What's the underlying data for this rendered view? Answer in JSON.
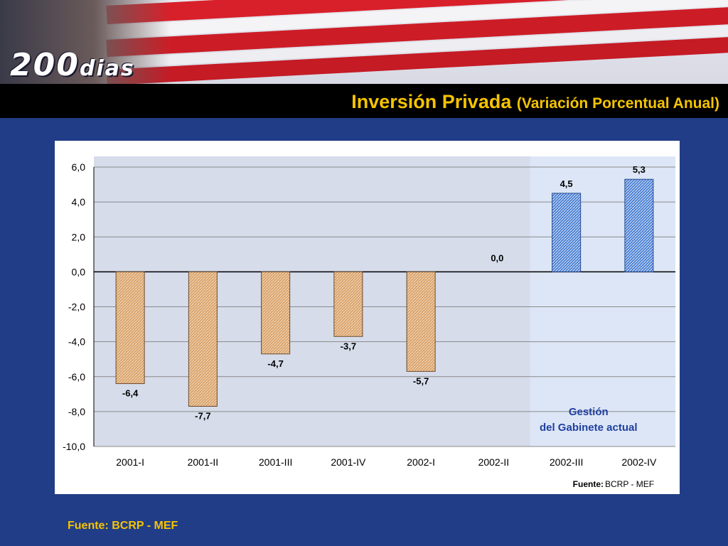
{
  "banner": {
    "logo_number": "200",
    "logo_word": "dias"
  },
  "header": {
    "title_main": "Inversión Privada",
    "title_sub": "(Variación Porcentual Anual)"
  },
  "chart_data": {
    "type": "bar",
    "categories": [
      "2001-I",
      "2001-II",
      "2001-III",
      "2001-IV",
      "2002-I",
      "2002-II",
      "2002-III",
      "2002-IV"
    ],
    "values": [
      -6.4,
      -7.7,
      -4.7,
      -3.7,
      -5.7,
      0.0,
      4.5,
      5.3
    ],
    "value_labels": [
      "-6,4",
      "-7,7",
      "-4,7",
      "-3,7",
      "-5,7",
      "0,0",
      "4,5",
      "5,3"
    ],
    "ylim": [
      -10,
      6
    ],
    "yticks": [
      6,
      4,
      2,
      0,
      -2,
      -4,
      -6,
      -8,
      -10
    ],
    "ytick_labels": [
      "6,0",
      "4,0",
      "2,0",
      "0,0",
      "-2,0",
      "-4,0",
      "-6,0",
      "-8,0",
      "-10,0"
    ],
    "grid": true,
    "colors": {
      "negative": "#c98f55",
      "positive": "#3f73c8",
      "highlight_band": "#dde6f6",
      "annotation": "#1f3fa0"
    },
    "highlight": {
      "from_category": "2002-III",
      "to_category": "2002-IV",
      "line1": "Gestión",
      "line2": "del Gabinete actual"
    },
    "source_label": "Fuente:",
    "source_value": "BCRP - MEF"
  },
  "footer": {
    "source_text": "Fuente: BCRP - MEF"
  }
}
